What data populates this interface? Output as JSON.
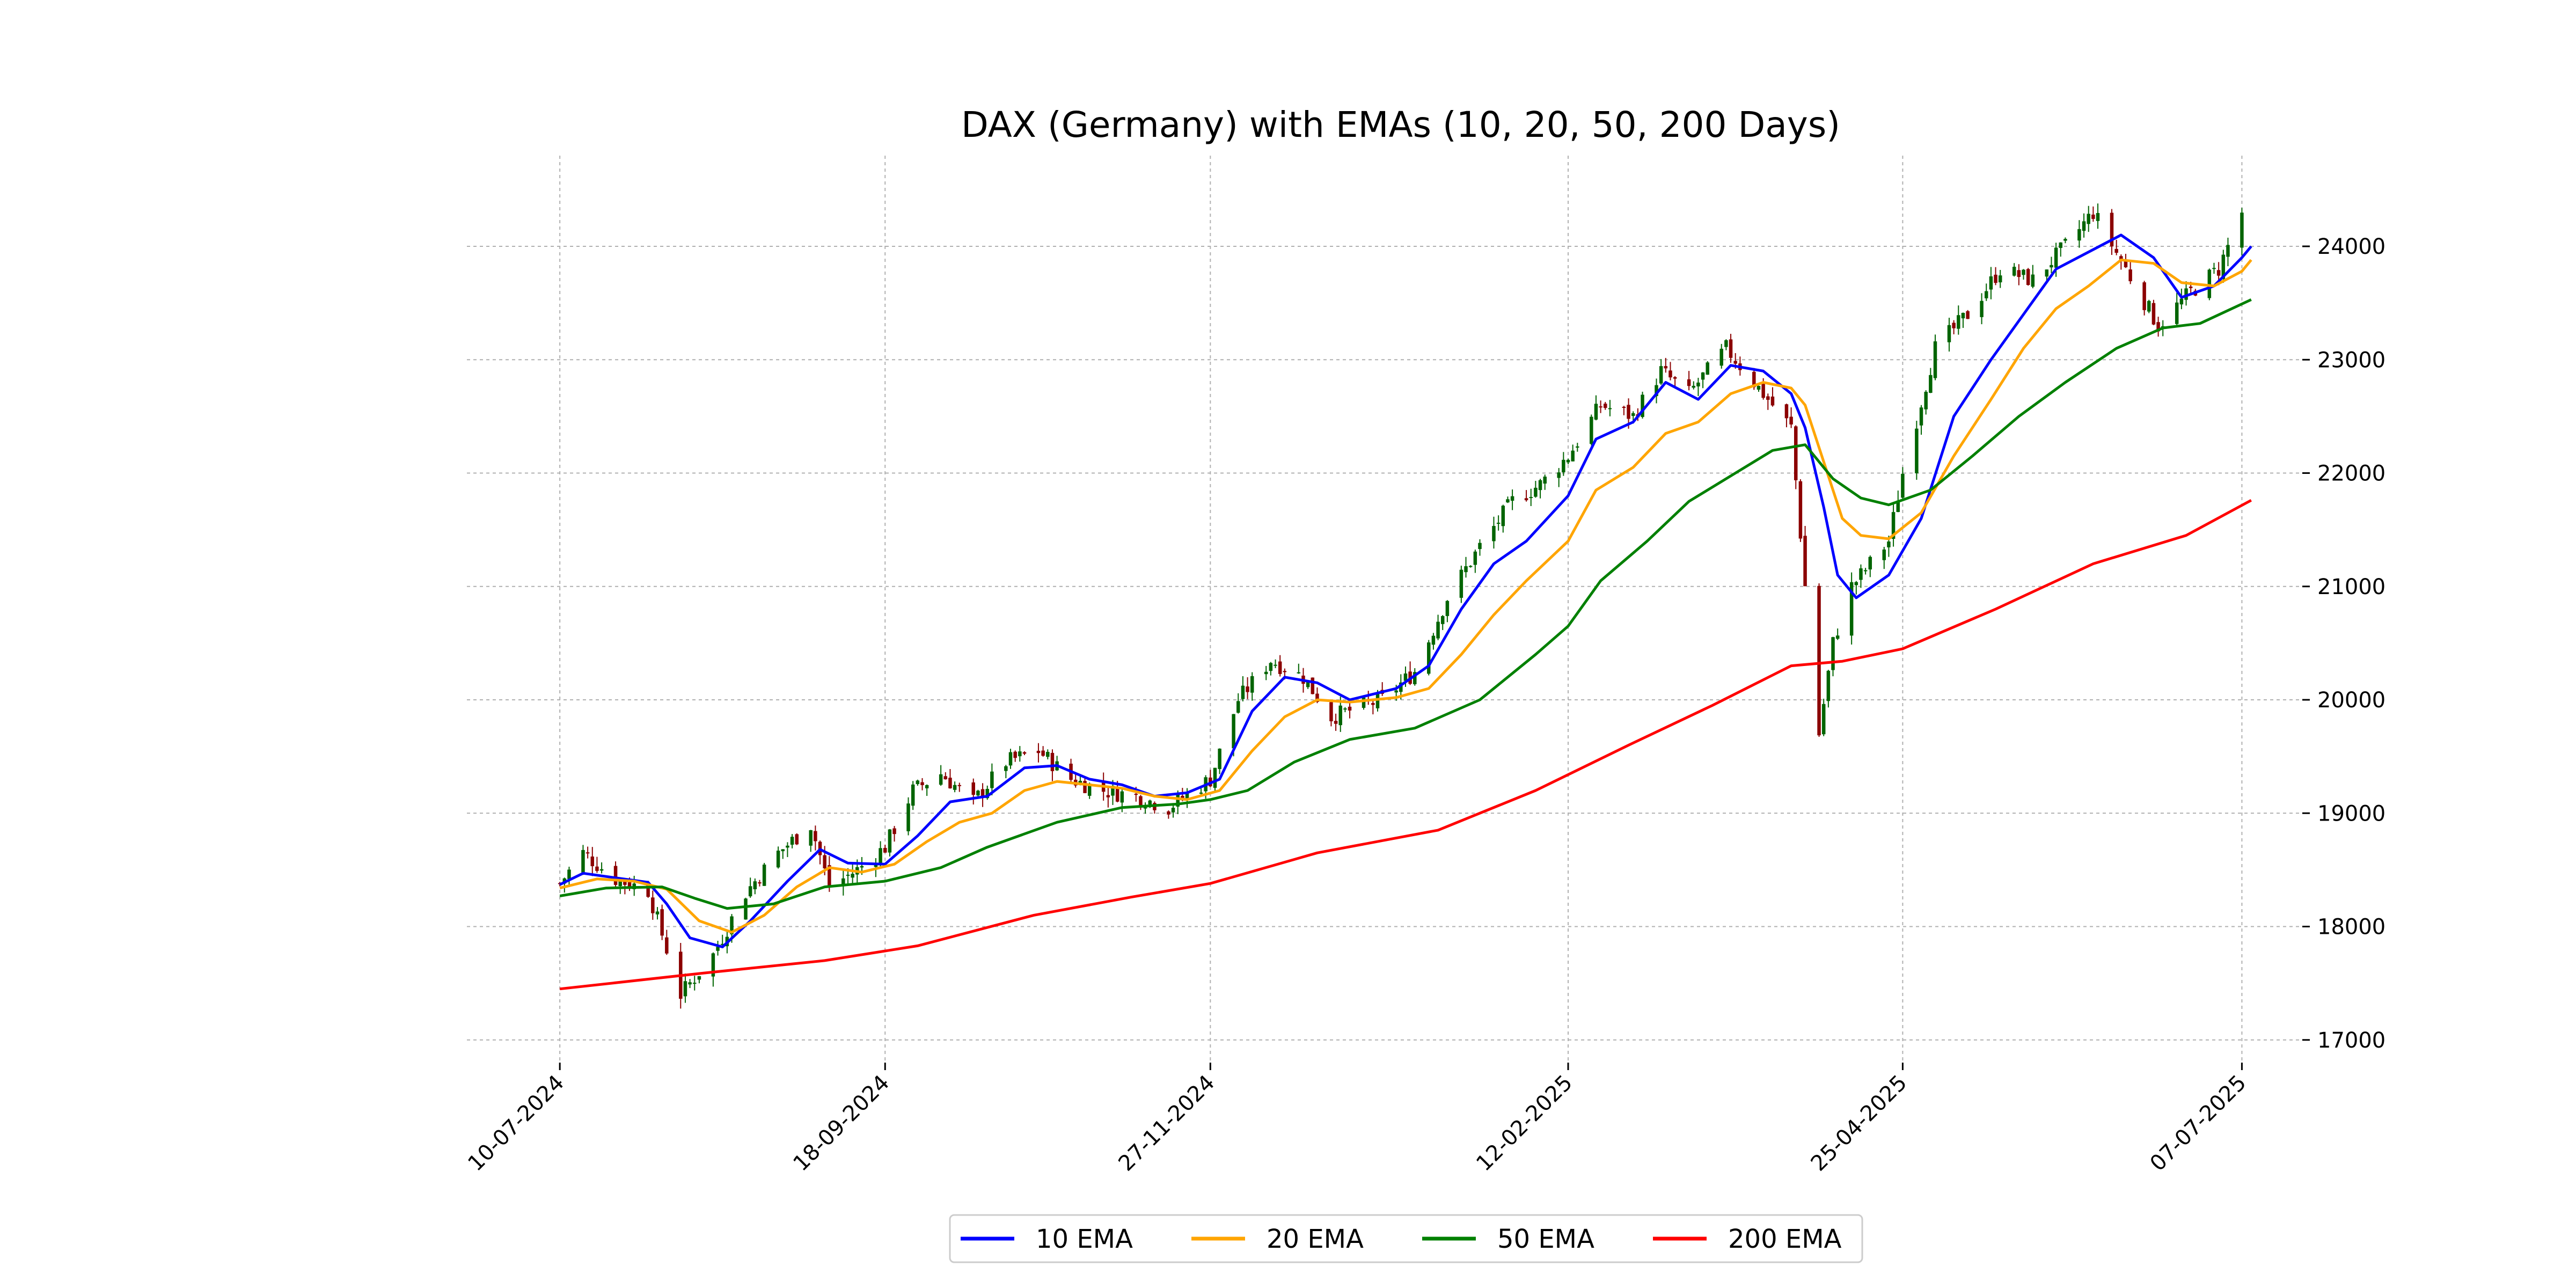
{
  "chart_data": {
    "type": "line",
    "title": "DAX (Germany) with EMAs (10, 20, 50, 200 Days)",
    "xlabel": "",
    "ylabel": "",
    "y_axis_side": "right",
    "ylim": [
      16800,
      24800
    ],
    "yticks": [
      17000,
      18000,
      19000,
      20000,
      21000,
      22000,
      23000,
      24000
    ],
    "x_tick_labels": [
      "10-07-2024",
      "18-09-2024",
      "27-11-2024",
      "12-02-2025",
      "25-04-2025",
      "07-07-2025"
    ],
    "x_tick_dates": [
      "2024-07-10",
      "2024-09-18",
      "2024-11-27",
      "2025-02-12",
      "2025-04-25",
      "2025-07-07"
    ],
    "xlim": [
      "2024-06-20",
      "2025-07-20"
    ],
    "grid": true,
    "legend_position": "bottom-center",
    "candlestick": {
      "up_color": "#006400",
      "down_color": "#8b0000",
      "ohlc_anchors": [
        [
          "2024-07-10",
          18380
        ],
        [
          "2024-07-15",
          18650
        ],
        [
          "2024-07-22",
          18420
        ],
        [
          "2024-07-29",
          18320
        ],
        [
          "2024-08-02",
          17800
        ],
        [
          "2024-08-05",
          17400
        ],
        [
          "2024-08-12",
          17750
        ],
        [
          "2024-08-19",
          18300
        ],
        [
          "2024-08-26",
          18650
        ],
        [
          "2024-09-02",
          18900
        ],
        [
          "2024-09-06",
          18350
        ],
        [
          "2024-09-12",
          18500
        ],
        [
          "2024-09-18",
          18700
        ],
        [
          "2024-09-24",
          19200
        ],
        [
          "2024-09-30",
          19350
        ],
        [
          "2024-10-07",
          19100
        ],
        [
          "2024-10-14",
          19450
        ],
        [
          "2024-10-21",
          19550
        ],
        [
          "2024-10-28",
          19300
        ],
        [
          "2024-11-04",
          19200
        ],
        [
          "2024-11-11",
          19150
        ],
        [
          "2024-11-18",
          19050
        ],
        [
          "2024-11-27",
          19300
        ],
        [
          "2024-12-03",
          20000
        ],
        [
          "2024-12-10",
          20350
        ],
        [
          "2024-12-17",
          20200
        ],
        [
          "2024-12-23",
          19850
        ],
        [
          "2025-01-03",
          20000
        ],
        [
          "2025-01-10",
          20250
        ],
        [
          "2025-01-17",
          20900
        ],
        [
          "2025-01-24",
          21350
        ],
        [
          "2025-01-31",
          21750
        ],
        [
          "2025-02-06",
          21900
        ],
        [
          "2025-02-12",
          22150
        ],
        [
          "2025-02-19",
          22600
        ],
        [
          "2025-02-26",
          22500
        ],
        [
          "2025-03-04",
          22900
        ],
        [
          "2025-03-10",
          22700
        ],
        [
          "2025-03-18",
          23100
        ],
        [
          "2025-03-26",
          22700
        ],
        [
          "2025-04-01",
          22400
        ],
        [
          "2025-04-04",
          21000
        ],
        [
          "2025-04-07",
          19700
        ],
        [
          "2025-04-10",
          20500
        ],
        [
          "2025-04-14",
          21000
        ],
        [
          "2025-04-22",
          21400
        ],
        [
          "2025-04-25",
          22000
        ],
        [
          "2025-05-02",
          23100
        ],
        [
          "2025-05-09",
          23400
        ],
        [
          "2025-05-16",
          23800
        ],
        [
          "2025-05-23",
          23700
        ],
        [
          "2025-05-30",
          24000
        ],
        [
          "2025-06-05",
          24300
        ],
        [
          "2025-06-12",
          23800
        ],
        [
          "2025-06-19",
          23300
        ],
        [
          "2025-06-26",
          23600
        ],
        [
          "2025-07-02",
          23800
        ],
        [
          "2025-07-07",
          24300
        ]
      ]
    },
    "series": [
      {
        "name": "10 EMA",
        "color": "#0000ff",
        "points": [
          [
            "2024-07-10",
            18370
          ],
          [
            "2024-07-15",
            18470
          ],
          [
            "2024-07-22",
            18430
          ],
          [
            "2024-07-29",
            18390
          ],
          [
            "2024-08-02",
            18200
          ],
          [
            "2024-08-07",
            17900
          ],
          [
            "2024-08-14",
            17820
          ],
          [
            "2024-08-20",
            18050
          ],
          [
            "2024-08-28",
            18400
          ],
          [
            "2024-09-04",
            18680
          ],
          [
            "2024-09-10",
            18560
          ],
          [
            "2024-09-18",
            18550
          ],
          [
            "2024-09-25",
            18800
          ],
          [
            "2024-10-02",
            19100
          ],
          [
            "2024-10-10",
            19150
          ],
          [
            "2024-10-18",
            19400
          ],
          [
            "2024-10-25",
            19420
          ],
          [
            "2024-11-01",
            19300
          ],
          [
            "2024-11-08",
            19250
          ],
          [
            "2024-11-15",
            19150
          ],
          [
            "2024-11-22",
            19180
          ],
          [
            "2024-11-29",
            19300
          ],
          [
            "2024-12-06",
            19900
          ],
          [
            "2024-12-13",
            20200
          ],
          [
            "2024-12-20",
            20150
          ],
          [
            "2024-12-27",
            20000
          ],
          [
            "2025-01-06",
            20100
          ],
          [
            "2025-01-13",
            20300
          ],
          [
            "2025-01-20",
            20800
          ],
          [
            "2025-01-27",
            21200
          ],
          [
            "2025-02-03",
            21400
          ],
          [
            "2025-02-12",
            21800
          ],
          [
            "2025-02-18",
            22300
          ],
          [
            "2025-02-26",
            22450
          ],
          [
            "2025-03-05",
            22800
          ],
          [
            "2025-03-12",
            22650
          ],
          [
            "2025-03-19",
            22950
          ],
          [
            "2025-03-26",
            22900
          ],
          [
            "2025-04-01",
            22700
          ],
          [
            "2025-04-04",
            22400
          ],
          [
            "2025-04-08",
            21700
          ],
          [
            "2025-04-11",
            21100
          ],
          [
            "2025-04-15",
            20900
          ],
          [
            "2025-04-22",
            21100
          ],
          [
            "2025-04-29",
            21600
          ],
          [
            "2025-05-06",
            22500
          ],
          [
            "2025-05-14",
            23000
          ],
          [
            "2025-05-21",
            23400
          ],
          [
            "2025-05-28",
            23800
          ],
          [
            "2025-06-04",
            23950
          ],
          [
            "2025-06-11",
            24100
          ],
          [
            "2025-06-18",
            23900
          ],
          [
            "2025-06-24",
            23550
          ],
          [
            "2025-07-01",
            23650
          ],
          [
            "2025-07-07",
            23900
          ],
          [
            "2025-07-09",
            24000
          ]
        ]
      },
      {
        "name": "20 EMA",
        "color": "#ffa500",
        "points": [
          [
            "2024-07-10",
            18340
          ],
          [
            "2024-07-18",
            18420
          ],
          [
            "2024-07-26",
            18400
          ],
          [
            "2024-08-02",
            18330
          ],
          [
            "2024-08-09",
            18050
          ],
          [
            "2024-08-16",
            17950
          ],
          [
            "2024-08-23",
            18100
          ],
          [
            "2024-08-30",
            18350
          ],
          [
            "2024-09-06",
            18520
          ],
          [
            "2024-09-13",
            18480
          ],
          [
            "2024-09-20",
            18550
          ],
          [
            "2024-09-27",
            18750
          ],
          [
            "2024-10-04",
            18920
          ],
          [
            "2024-10-11",
            19000
          ],
          [
            "2024-10-18",
            19200
          ],
          [
            "2024-10-25",
            19280
          ],
          [
            "2024-11-01",
            19250
          ],
          [
            "2024-11-08",
            19220
          ],
          [
            "2024-11-15",
            19150
          ],
          [
            "2024-11-22",
            19120
          ],
          [
            "2024-11-29",
            19200
          ],
          [
            "2024-12-06",
            19550
          ],
          [
            "2024-12-13",
            19850
          ],
          [
            "2024-12-20",
            20000
          ],
          [
            "2024-12-27",
            19980
          ],
          [
            "2025-01-06",
            20020
          ],
          [
            "2025-01-13",
            20100
          ],
          [
            "2025-01-20",
            20400
          ],
          [
            "2025-01-27",
            20750
          ],
          [
            "2025-02-03",
            21050
          ],
          [
            "2025-02-12",
            21400
          ],
          [
            "2025-02-18",
            21850
          ],
          [
            "2025-02-26",
            22050
          ],
          [
            "2025-03-05",
            22350
          ],
          [
            "2025-03-12",
            22450
          ],
          [
            "2025-03-19",
            22700
          ],
          [
            "2025-03-26",
            22800
          ],
          [
            "2025-04-01",
            22750
          ],
          [
            "2025-04-04",
            22600
          ],
          [
            "2025-04-08",
            22100
          ],
          [
            "2025-04-12",
            21600
          ],
          [
            "2025-04-16",
            21450
          ],
          [
            "2025-04-22",
            21420
          ],
          [
            "2025-04-29",
            21650
          ],
          [
            "2025-05-06",
            22150
          ],
          [
            "2025-05-14",
            22650
          ],
          [
            "2025-05-21",
            23100
          ],
          [
            "2025-05-28",
            23450
          ],
          [
            "2025-06-04",
            23650
          ],
          [
            "2025-06-11",
            23880
          ],
          [
            "2025-06-18",
            23850
          ],
          [
            "2025-06-24",
            23680
          ],
          [
            "2025-07-01",
            23650
          ],
          [
            "2025-07-07",
            23780
          ],
          [
            "2025-07-09",
            23880
          ]
        ]
      },
      {
        "name": "50 EMA",
        "color": "#008000",
        "points": [
          [
            "2024-07-10",
            18270
          ],
          [
            "2024-07-20",
            18340
          ],
          [
            "2024-08-01",
            18350
          ],
          [
            "2024-08-08",
            18250
          ],
          [
            "2024-08-15",
            18160
          ],
          [
            "2024-08-25",
            18200
          ],
          [
            "2024-09-05",
            18350
          ],
          [
            "2024-09-18",
            18400
          ],
          [
            "2024-09-30",
            18520
          ],
          [
            "2024-10-10",
            18700
          ],
          [
            "2024-10-25",
            18920
          ],
          [
            "2024-11-08",
            19050
          ],
          [
            "2024-11-20",
            19080
          ],
          [
            "2024-11-27",
            19120
          ],
          [
            "2024-12-05",
            19200
          ],
          [
            "2024-12-15",
            19450
          ],
          [
            "2024-12-27",
            19650
          ],
          [
            "2025-01-10",
            19750
          ],
          [
            "2025-01-24",
            20000
          ],
          [
            "2025-02-05",
            20400
          ],
          [
            "2025-02-12",
            20650
          ],
          [
            "2025-02-19",
            21050
          ],
          [
            "2025-03-01",
            21400
          ],
          [
            "2025-03-10",
            21750
          ],
          [
            "2025-03-20",
            22000
          ],
          [
            "2025-03-28",
            22200
          ],
          [
            "2025-04-04",
            22250
          ],
          [
            "2025-04-10",
            21950
          ],
          [
            "2025-04-16",
            21780
          ],
          [
            "2025-04-22",
            21720
          ],
          [
            "2025-05-01",
            21850
          ],
          [
            "2025-05-10",
            22150
          ],
          [
            "2025-05-20",
            22500
          ],
          [
            "2025-05-30",
            22800
          ],
          [
            "2025-06-10",
            23100
          ],
          [
            "2025-06-20",
            23280
          ],
          [
            "2025-06-28",
            23320
          ],
          [
            "2025-07-09",
            23530
          ]
        ]
      },
      {
        "name": "200 EMA",
        "color": "#ff0000",
        "points": [
          [
            "2024-07-10",
            17450
          ],
          [
            "2024-08-10",
            17590
          ],
          [
            "2024-09-05",
            17700
          ],
          [
            "2024-09-25",
            17830
          ],
          [
            "2024-10-20",
            18100
          ],
          [
            "2024-11-10",
            18260
          ],
          [
            "2024-11-27",
            18380
          ],
          [
            "2024-12-20",
            18650
          ],
          [
            "2025-01-15",
            18850
          ],
          [
            "2025-02-05",
            19200
          ],
          [
            "2025-02-25",
            19600
          ],
          [
            "2025-03-15",
            19950
          ],
          [
            "2025-04-01",
            20300
          ],
          [
            "2025-04-12",
            20340
          ],
          [
            "2025-04-25",
            20450
          ],
          [
            "2025-05-15",
            20800
          ],
          [
            "2025-06-05",
            21200
          ],
          [
            "2025-06-25",
            21450
          ],
          [
            "2025-07-09",
            21760
          ]
        ]
      }
    ]
  }
}
